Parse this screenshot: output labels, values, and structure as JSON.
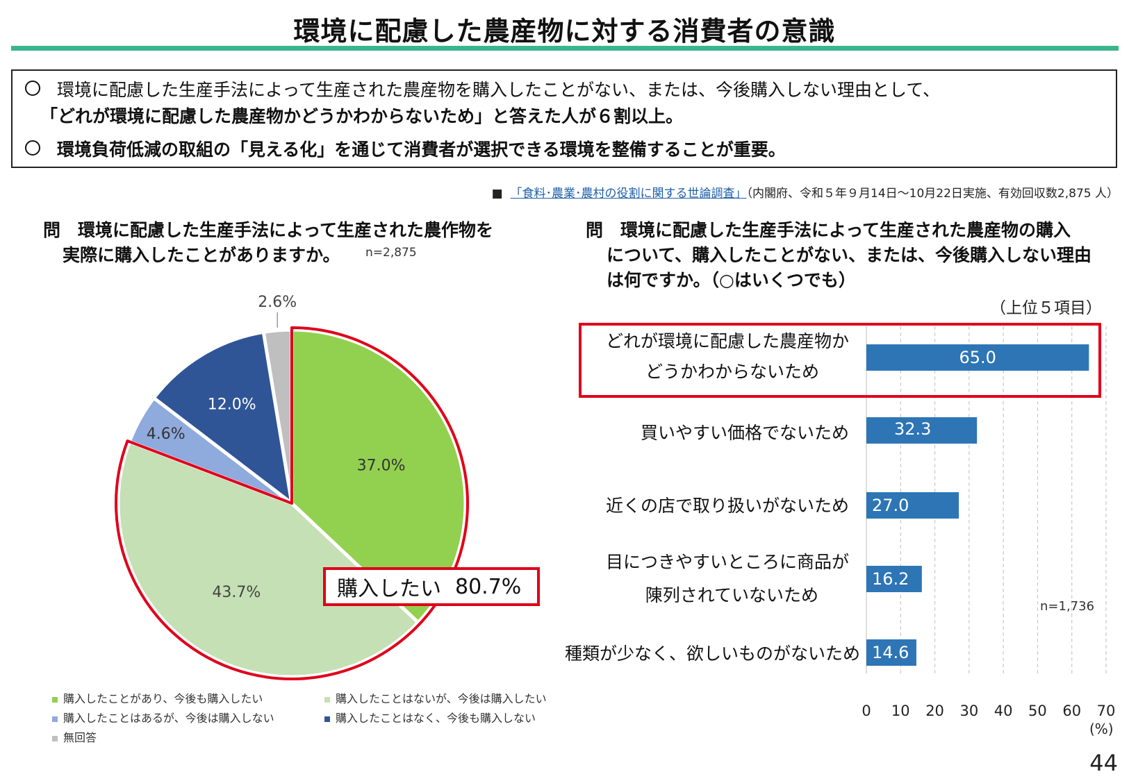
{
  "title": "環境に配慮した農産物に対する消費者の意識",
  "summary": {
    "line1": "環境に配慮した生産手法によって生産された農産物を購入したことがない、または、今後購入しない理由として、",
    "line2": "「どれが環境に配慮した農産物かどうかわからないため」と答えた人が６割以上。",
    "line3": "環境負荷低減の取組の「見える化」を通じて消費者が選択できる環境を整備することが重要。"
  },
  "source": {
    "bullet": "■",
    "link": "「食料･農業･農村の役割に関する世論調査」",
    "detail": "（内閣府、令和５年９月14日～10月22日実施、有効回収数2,875 人）"
  },
  "left": {
    "q_mark": "問",
    "q_line1": "環境に配慮した生産手法によって生産された農作物を",
    "q_line2": "実際に購入したことがありますか。",
    "n": "n=2,875",
    "callout_label": "購入したい",
    "callout_value": "80.7%"
  },
  "right": {
    "q_mark": "問",
    "q_line1": "環境に配慮した生産手法によって生産された農産物の購入",
    "q_line2": "について、購入したことがない、または、今後購入しない理由",
    "q_line3": "は何ですか。（○はいくつでも）",
    "top5": "（上位５項目）",
    "n": "n=1,736",
    "unit": "(%)",
    "cat1_line1": "どれが環境に配慮した農産物か",
    "cat1_line2": "どうかわからないため",
    "cat2": "買いやすい価格でないため",
    "cat3": "近くの店で取り扱いがないため",
    "cat4_line1": "目につきやすいところに商品が",
    "cat4_line2": "陳列されていないため",
    "cat5": "種類が少なく、欲しいものがないため"
  },
  "page_number": "44",
  "chart_data": [
    {
      "type": "pie",
      "start": "12 o'clock, clockwise",
      "slices": [
        {
          "label": "購入したことがあり、今後も購入したい",
          "value": 37.0,
          "display": "37.0%",
          "color": "#92d050"
        },
        {
          "label": "購入したことはないが、今後は購入したい",
          "value": 43.7,
          "display": "43.7%",
          "color": "#c5e0b4"
        },
        {
          "label": "購入したことはあるが、今後は購入しない",
          "value": 4.6,
          "display": "4.6%",
          "color": "#8faadc"
        },
        {
          "label": "購入したことはなく、今後も購入しない",
          "value": 12.0,
          "display": "12.0%",
          "color": "#2f5597"
        },
        {
          "label": "無回答",
          "value": 2.6,
          "display": "2.6%",
          "color": "#bfbfbf"
        }
      ],
      "legend": "bottom"
    },
    {
      "type": "bar",
      "orientation": "horizontal",
      "categories": [
        "どれが環境に配慮した農産物かどうかわからないため",
        "買いやすい価格でないため",
        "近くの店で取り扱いがないため",
        "目につきやすいところに商品が陳列されていないため",
        "種類が少なく、欲しいものがないため"
      ],
      "values": [
        65.0,
        32.3,
        27.0,
        16.2,
        14.6
      ],
      "labels": [
        "65.0",
        "32.3",
        "27.0",
        "16.2",
        "14.6"
      ],
      "xlim": [
        0,
        70
      ],
      "xticks": [
        "0",
        "10",
        "20",
        "30",
        "40",
        "50",
        "60",
        "70"
      ],
      "bar_color": "#2e75b6",
      "grid": "vertical dashed"
    }
  ]
}
